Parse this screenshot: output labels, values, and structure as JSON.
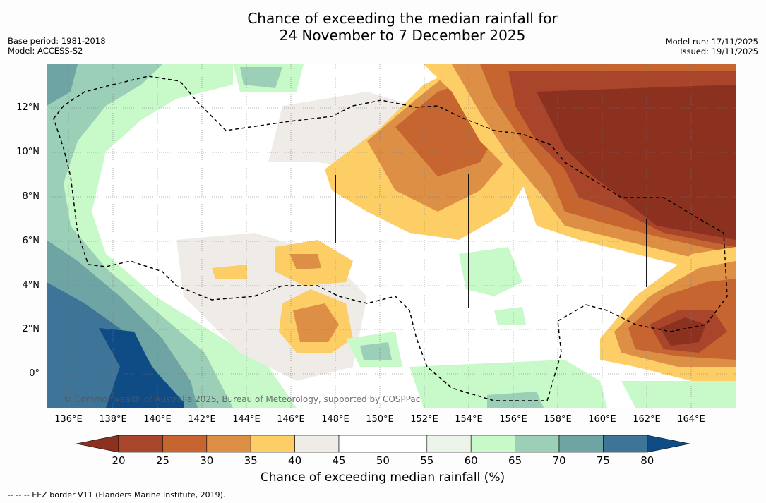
{
  "header": {
    "title_line1": "Chance of exceeding the median rainfall for",
    "title_line2": "24 November to 7 December 2025",
    "base_period": "Base period: 1981-2018",
    "model": "Model: ACCESS-S2",
    "model_run": "Model run: 17/11/2025",
    "issued": "Issued: 19/11/2025"
  },
  "map": {
    "copyright": "© Commonwealth of Australia 2025, Bureau of Meteorology, supported by COSPPac",
    "x_ticks": [
      "136°E",
      "138°E",
      "140°E",
      "142°E",
      "144°E",
      "146°E",
      "148°E",
      "150°E",
      "152°E",
      "154°E",
      "156°E",
      "158°E",
      "160°E",
      "162°E",
      "164°E"
    ],
    "y_ticks": [
      "12°N",
      "10°N",
      "8°N",
      "6°N",
      "4°N",
      "2°N",
      "0°"
    ],
    "extent": {
      "lon_min": 135,
      "lon_max": 166,
      "lat_min": -1.5,
      "lat_max": 14
    }
  },
  "colorbar": {
    "labels": [
      "20",
      "25",
      "30",
      "35",
      "40",
      "45",
      "50",
      "55",
      "60",
      "65",
      "70",
      "75",
      "80"
    ],
    "title": "Chance of exceeding median rainfall (%)",
    "colors": [
      "#a8452a",
      "#c6652f",
      "#dc8f45",
      "#fdcd66",
      "#efebe6",
      "#ffffff",
      "#ffffff",
      "#eaf4e9",
      "#c7f9c9",
      "#9ccfb7",
      "#6fa4a4",
      "#3f7499"
    ],
    "under_color": "#8c3020",
    "over_color": "#0f4c85"
  },
  "footer": {
    "legend": "-- -- -- EEZ border V11 (Flanders Marine Institute, 2019)."
  }
}
